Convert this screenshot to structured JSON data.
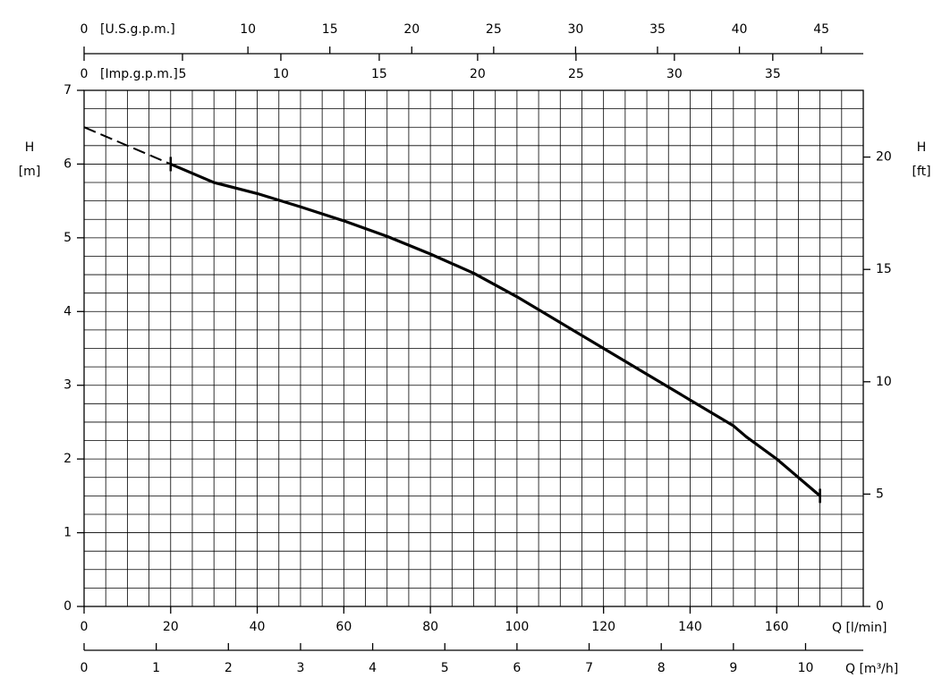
{
  "chart_data": {
    "type": "line",
    "series": [
      {
        "x": [
          0,
          20
        ],
        "values": [
          6.5,
          6.0
        ],
        "color": "#000000",
        "dash": true
      },
      {
        "x": [
          20,
          30,
          40,
          50,
          60,
          70,
          80,
          90,
          100,
          110,
          120,
          130,
          140,
          150,
          153,
          160,
          170
        ],
        "values": [
          6.0,
          5.75,
          5.6,
          5.42,
          5.23,
          5.02,
          4.78,
          4.52,
          4.2,
          3.85,
          3.5,
          3.15,
          2.8,
          2.45,
          2.3,
          2.0,
          1.5
        ],
        "color": "#000000",
        "dash": false
      }
    ],
    "xlim": [
      0,
      180
    ],
    "xticks": [
      0,
      20,
      40,
      60,
      80,
      100,
      120,
      140,
      160
    ],
    "xlabel": "Q [l/min]",
    "ylim": [
      0,
      7
    ],
    "yticks": [
      0,
      1,
      2,
      3,
      4,
      5,
      6,
      7
    ],
    "ylabel": "H",
    "yunit": "[m]",
    "y2lim": [
      0,
      22.97
    ],
    "y2ticks": [
      0,
      5,
      10,
      15,
      20
    ],
    "y2label": "H",
    "y2unit": "[ft]",
    "x2lim": [
      0,
      47.56
    ],
    "x2ticks": [
      0,
      10,
      15,
      20,
      25,
      30,
      35,
      40,
      45
    ],
    "x2label": "[U.S.g.p.m.]",
    "x3lim": [
      0,
      39.6
    ],
    "x3ticks": [
      0,
      5,
      10,
      15,
      20,
      25,
      30,
      35
    ],
    "x3label": "[Imp.g.p.m.]",
    "x4lim": [
      0,
      10.8
    ],
    "x4ticks": [
      0,
      1,
      2,
      3,
      4,
      5,
      6,
      7,
      8,
      9,
      10
    ],
    "x4label": "Q [m³/h]",
    "grid": true,
    "grid_step": {
      "x": 5,
      "y": 0.25
    }
  }
}
